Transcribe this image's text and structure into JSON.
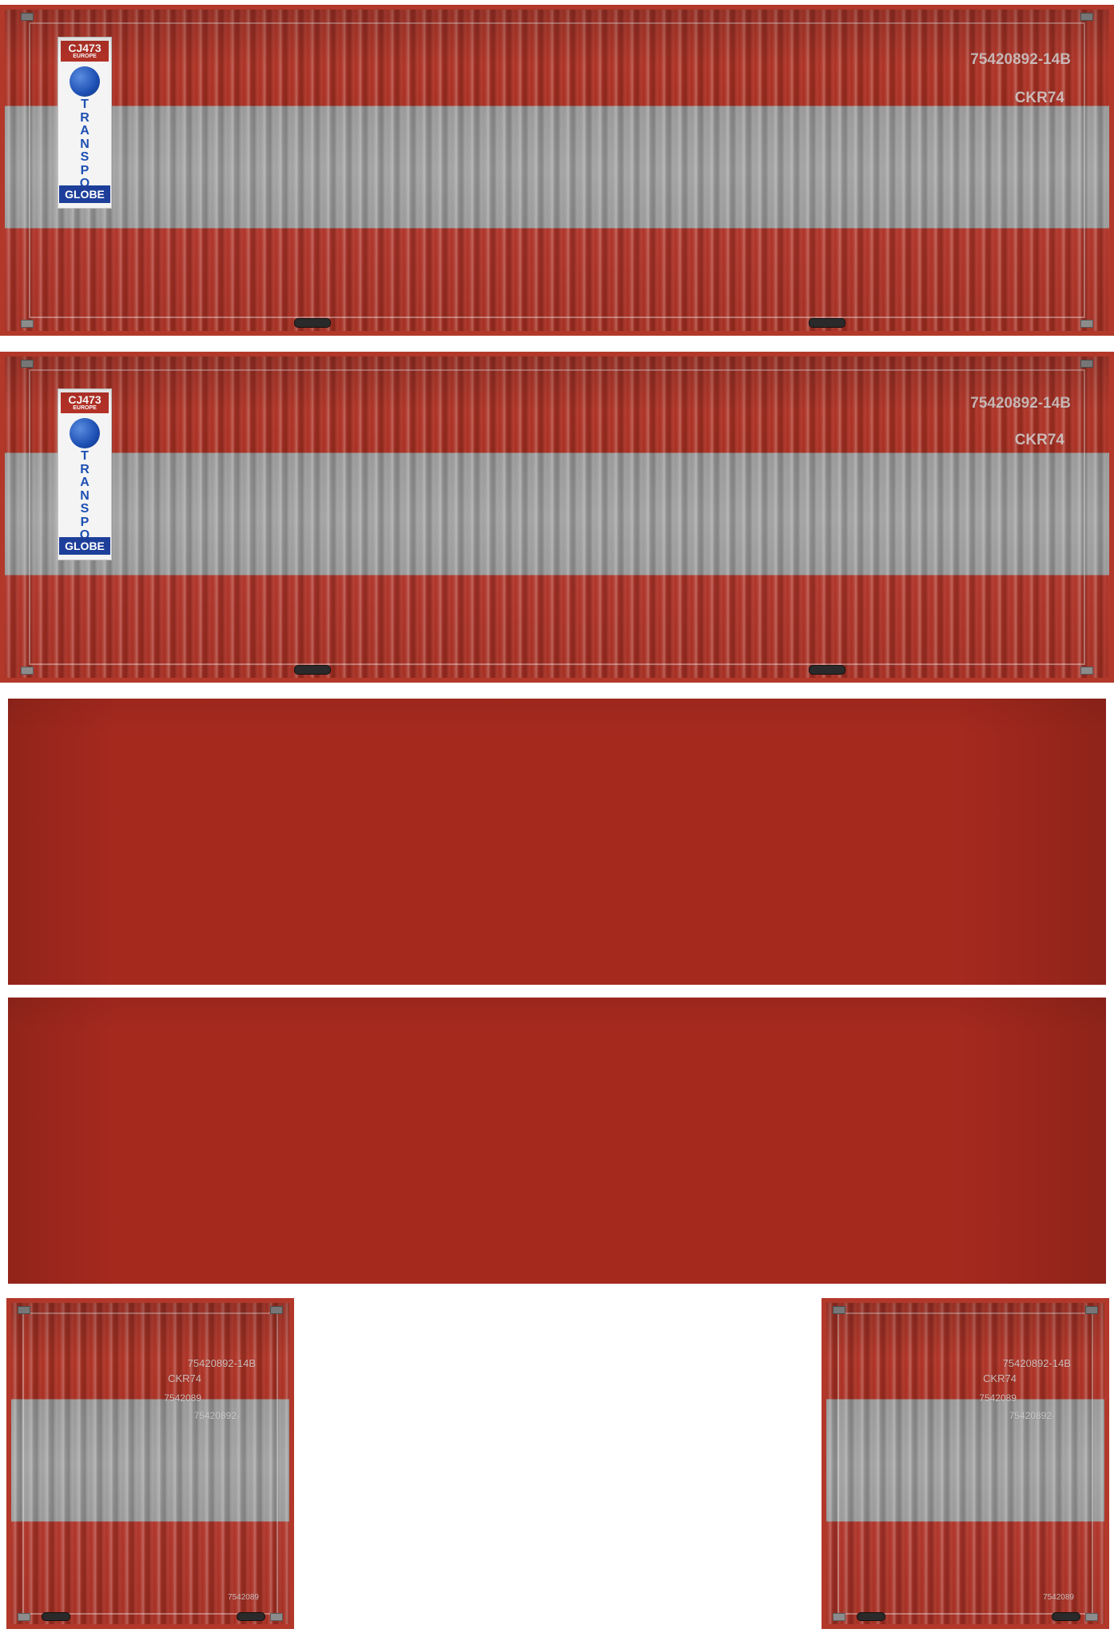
{
  "side_panels": [
    {
      "logo": {
        "code": "CJ473",
        "region": "EUROPE",
        "word": [
          "T",
          "R",
          "A",
          "N",
          "S",
          "P",
          "O"
        ],
        "tag": "GLOBE"
      },
      "container_id": "75420892-14B",
      "code": "CKR74"
    },
    {
      "logo": {
        "code": "CJ473",
        "region": "EUROPE",
        "word": [
          "T",
          "R",
          "A",
          "N",
          "S",
          "P",
          "O"
        ],
        "tag": "GLOBE"
      },
      "container_id": "75420892-14B",
      "code": "CKR74"
    }
  ],
  "end_doors": [
    {
      "line1": "75420892-14B",
      "line2": "CKR74",
      "line3": "7542089",
      "line4": "75420892-",
      "line5": "7542089"
    },
    {
      "line1": "75420892-14B",
      "line2": "CKR74",
      "line3": "7542089",
      "line4": "75420892-",
      "line5": "7542089"
    }
  ],
  "colors": {
    "container_red": "#a6291e",
    "band_grey": "#9e9e9e",
    "logo_blue": "#1d4fb3"
  }
}
